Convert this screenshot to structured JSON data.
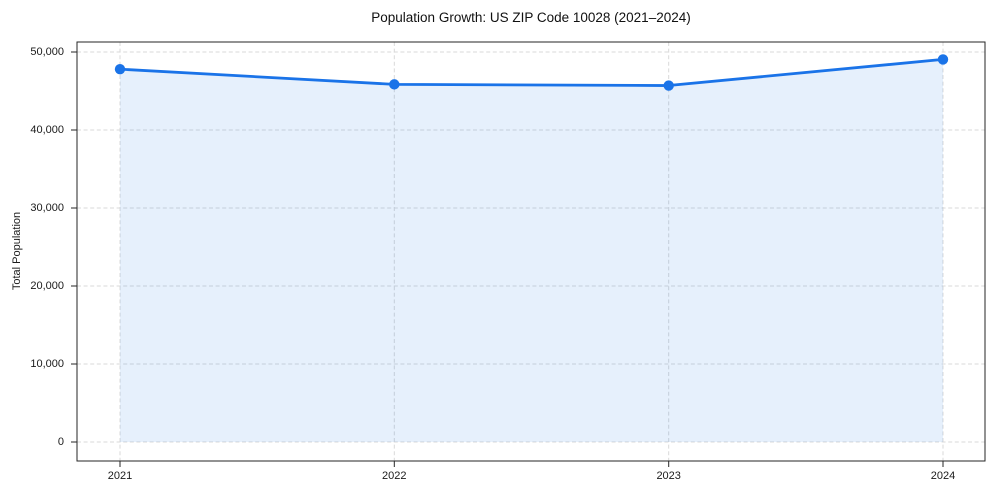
{
  "chart_data": {
    "type": "line",
    "title": "Population Growth: US ZIP Code 10028 (2021–2024)",
    "xlabel": "",
    "ylabel": "Total Population",
    "categories": [
      "2021",
      "2022",
      "2023",
      "2024"
    ],
    "series_name": "Total Population",
    "values": [
      47800,
      45850,
      45700,
      49050
    ],
    "area_fill": true,
    "markers": true,
    "ylim": [
      0,
      50000
    ],
    "yticks": [
      0,
      10000,
      20000,
      30000,
      40000,
      50000
    ],
    "ytick_labels": [
      "0",
      "10,000",
      "20,000",
      "30,000",
      "40,000",
      "50,000"
    ],
    "grid": true,
    "grid_style": "dashed",
    "legend_position": "none",
    "colors": {
      "line": "#1a73e8",
      "marker": "#1a73e8",
      "fill": "rgba(26,115,232,0.11)",
      "grid": "#d9d9d9",
      "spine": "#262626",
      "text": "#1a1a1a",
      "plot_bg": "#ffffff",
      "figure_bg": "#ffffff"
    }
  }
}
